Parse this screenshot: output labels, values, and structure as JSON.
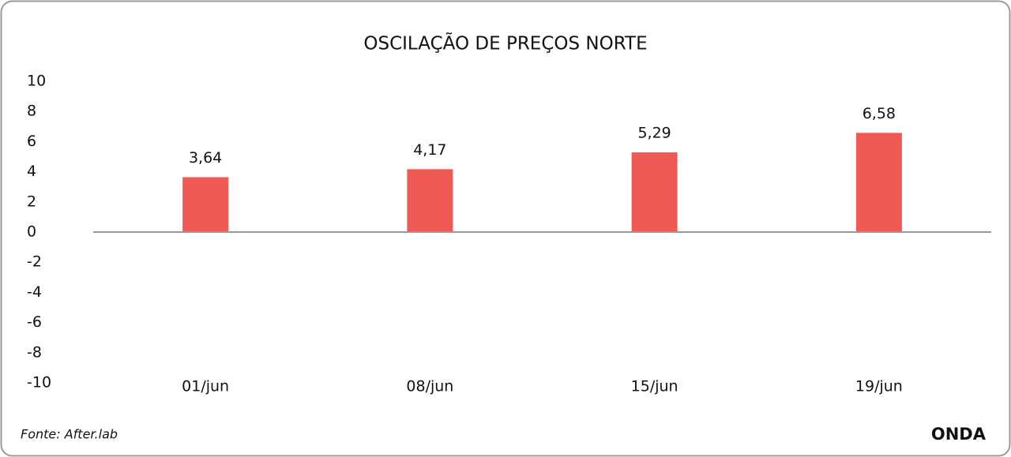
{
  "chart_data": {
    "type": "bar",
    "title": "OSCILAÇÃO DE PREÇOS NORTE",
    "categories": [
      "01/jun",
      "08/jun",
      "15/jun",
      "19/jun"
    ],
    "values": [
      3.64,
      4.17,
      5.29,
      6.58
    ],
    "value_labels": [
      "3,64",
      "4,17",
      "5,29",
      "6,58"
    ],
    "color": "#f05a55",
    "ylim": [
      -10,
      10
    ],
    "yticks": [
      -10,
      -8,
      -6,
      -4,
      -2,
      0,
      2,
      4,
      6,
      8,
      10
    ],
    "grid": false,
    "source": "Fonte: After.lab",
    "logo": "ONDA"
  }
}
